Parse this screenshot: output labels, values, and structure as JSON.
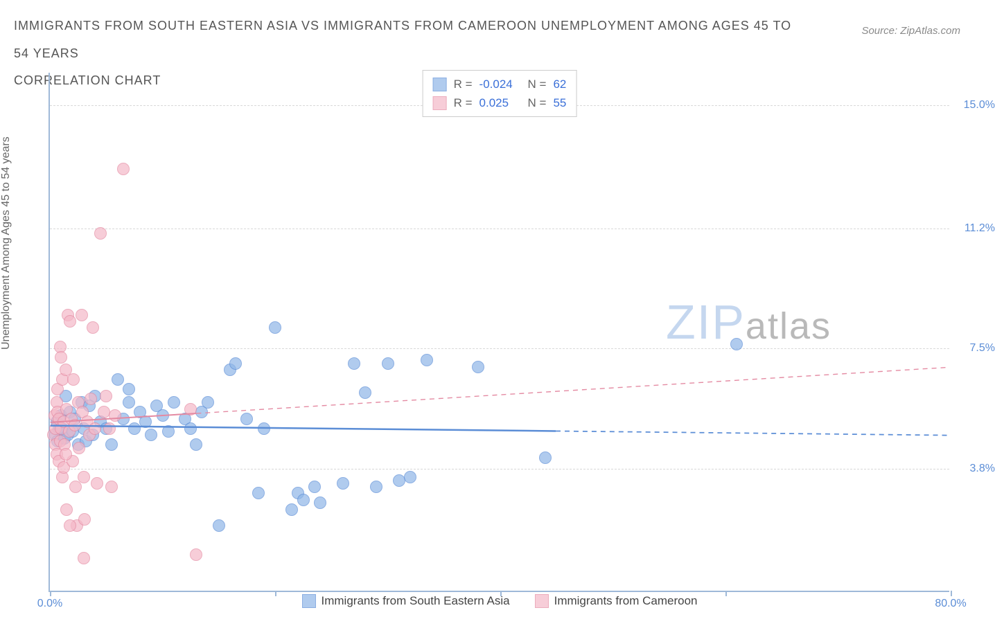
{
  "title_line1": "IMMIGRANTS FROM SOUTH EASTERN ASIA VS IMMIGRANTS FROM CAMEROON UNEMPLOYMENT AMONG AGES 45 TO 54 YEARS",
  "title_line2": "CORRELATION CHART",
  "source_label": "Source: ZipAtlas.com",
  "y_axis_label": "Unemployment Among Ages 45 to 54 years",
  "watermark_a": "ZIP",
  "watermark_b": "atlas",
  "chart": {
    "type": "scatter",
    "xlim": [
      0,
      80
    ],
    "ylim": [
      0,
      16
    ],
    "x_ticks": [
      0,
      20,
      40,
      60,
      80
    ],
    "x_tick_labels": [
      "0.0%",
      "",
      "",
      "",
      "80.0%"
    ],
    "y_ticks": [
      3.8,
      7.5,
      11.2,
      15.0
    ],
    "y_tick_labels": [
      "3.8%",
      "7.5%",
      "11.2%",
      "15.0%"
    ],
    "background_color": "#ffffff",
    "grid_color": "#d8d8d8",
    "axis_color": "#9fb9d8",
    "tick_label_color": "#5b8dd6",
    "marker_radius": 9,
    "marker_fill_opacity": 0.35,
    "marker_stroke_width": 1.5,
    "title_color": "#555555",
    "title_fontsize": 18,
    "label_fontsize": 16,
    "watermark_color_a": "#c5d7ef",
    "watermark_color_b": "#b9b9b9"
  },
  "series": [
    {
      "id": "sea",
      "label": "Immigrants from South Eastern Asia",
      "R": "-0.024",
      "N": "62",
      "fill": "#8fb6e8",
      "stroke": "#5b8dd6",
      "trend": {
        "x1": 0,
        "y1": 5.1,
        "x2": 80,
        "y2": 4.8,
        "solid_until": 45,
        "stroke_width": 2.5
      },
      "points": [
        [
          0.5,
          4.8
        ],
        [
          0.6,
          5.2
        ],
        [
          0.7,
          4.6
        ],
        [
          0.8,
          5.0
        ],
        [
          1.0,
          5.4
        ],
        [
          1.1,
          5.0
        ],
        [
          1.3,
          4.7
        ],
        [
          1.4,
          6.0
        ],
        [
          1.6,
          4.8
        ],
        [
          1.8,
          5.5
        ],
        [
          2.0,
          4.9
        ],
        [
          2.2,
          5.3
        ],
        [
          2.5,
          4.5
        ],
        [
          2.8,
          5.8
        ],
        [
          3.0,
          5.0
        ],
        [
          3.2,
          4.6
        ],
        [
          3.5,
          5.7
        ],
        [
          3.8,
          4.8
        ],
        [
          4.0,
          6.0
        ],
        [
          4.5,
          5.2
        ],
        [
          5.0,
          5.0
        ],
        [
          5.5,
          4.5
        ],
        [
          6.0,
          6.5
        ],
        [
          6.5,
          5.3
        ],
        [
          7.0,
          5.8
        ],
        [
          7.5,
          5.0
        ],
        [
          8.0,
          5.5
        ],
        [
          8.5,
          5.2
        ],
        [
          9.0,
          4.8
        ],
        [
          9.5,
          5.7
        ],
        [
          10.0,
          5.4
        ],
        [
          10.5,
          4.9
        ],
        [
          11.0,
          5.8
        ],
        [
          12.0,
          5.3
        ],
        [
          12.5,
          5.0
        ],
        [
          13.0,
          4.5
        ],
        [
          13.5,
          5.5
        ],
        [
          14.0,
          5.8
        ],
        [
          15.0,
          2.0
        ],
        [
          16.0,
          6.8
        ],
        [
          16.5,
          7.0
        ],
        [
          17.5,
          5.3
        ],
        [
          18.5,
          3.0
        ],
        [
          19.0,
          5.0
        ],
        [
          20.0,
          8.1
        ],
        [
          21.5,
          2.5
        ],
        [
          22.0,
          3.0
        ],
        [
          22.5,
          2.8
        ],
        [
          23.5,
          3.2
        ],
        [
          24.0,
          2.7
        ],
        [
          26.0,
          3.3
        ],
        [
          27.0,
          7.0
        ],
        [
          28.0,
          6.1
        ],
        [
          29.0,
          3.2
        ],
        [
          30.0,
          7.0
        ],
        [
          31.0,
          3.4
        ],
        [
          32.0,
          3.5
        ],
        [
          33.5,
          7.1
        ],
        [
          38.0,
          6.9
        ],
        [
          44.0,
          4.1
        ],
        [
          61.0,
          7.6
        ],
        [
          7.0,
          6.2
        ]
      ]
    },
    {
      "id": "cam",
      "label": "Immigrants from Cameroon",
      "R": "0.025",
      "N": "55",
      "fill": "#f5b9c8",
      "stroke": "#e48aa2",
      "trend": {
        "x1": 0,
        "y1": 5.2,
        "x2": 80,
        "y2": 6.9,
        "solid_until": 13,
        "stroke_width": 2
      },
      "points": [
        [
          0.3,
          4.8
        ],
        [
          0.4,
          5.4
        ],
        [
          0.5,
          4.5
        ],
        [
          0.5,
          5.0
        ],
        [
          0.6,
          5.8
        ],
        [
          0.6,
          4.2
        ],
        [
          0.7,
          5.5
        ],
        [
          0.7,
          6.2
        ],
        [
          0.8,
          4.0
        ],
        [
          0.8,
          5.3
        ],
        [
          0.9,
          7.5
        ],
        [
          0.9,
          4.6
        ],
        [
          1.0,
          7.2
        ],
        [
          1.0,
          5.0
        ],
        [
          1.1,
          3.5
        ],
        [
          1.1,
          6.5
        ],
        [
          1.2,
          5.2
        ],
        [
          1.2,
          3.8
        ],
        [
          1.3,
          4.5
        ],
        [
          1.4,
          6.8
        ],
        [
          1.5,
          5.6
        ],
        [
          1.5,
          2.5
        ],
        [
          1.6,
          8.5
        ],
        [
          1.7,
          4.9
        ],
        [
          1.8,
          8.3
        ],
        [
          1.9,
          5.3
        ],
        [
          2.0,
          4.0
        ],
        [
          2.1,
          6.5
        ],
        [
          2.2,
          5.1
        ],
        [
          2.3,
          3.2
        ],
        [
          2.4,
          2.0
        ],
        [
          2.5,
          5.8
        ],
        [
          2.6,
          4.4
        ],
        [
          2.8,
          8.5
        ],
        [
          2.9,
          5.5
        ],
        [
          3.0,
          3.5
        ],
        [
          3.1,
          2.2
        ],
        [
          3.3,
          5.2
        ],
        [
          3.5,
          4.8
        ],
        [
          3.6,
          5.9
        ],
        [
          3.8,
          8.1
        ],
        [
          4.0,
          5.0
        ],
        [
          4.2,
          3.3
        ],
        [
          4.5,
          11.0
        ],
        [
          4.8,
          5.5
        ],
        [
          5.0,
          6.0
        ],
        [
          5.3,
          5.0
        ],
        [
          5.5,
          3.2
        ],
        [
          1.8,
          2.0
        ],
        [
          5.8,
          5.4
        ],
        [
          6.5,
          13.0
        ],
        [
          3.0,
          1.0
        ],
        [
          12.5,
          5.6
        ],
        [
          13.0,
          1.1
        ],
        [
          1.4,
          4.2
        ]
      ]
    }
  ],
  "legend_top": {
    "R_label": "R =",
    "N_label": "N =",
    "value_color": "#3a6fd8",
    "text_color": "#666666"
  }
}
